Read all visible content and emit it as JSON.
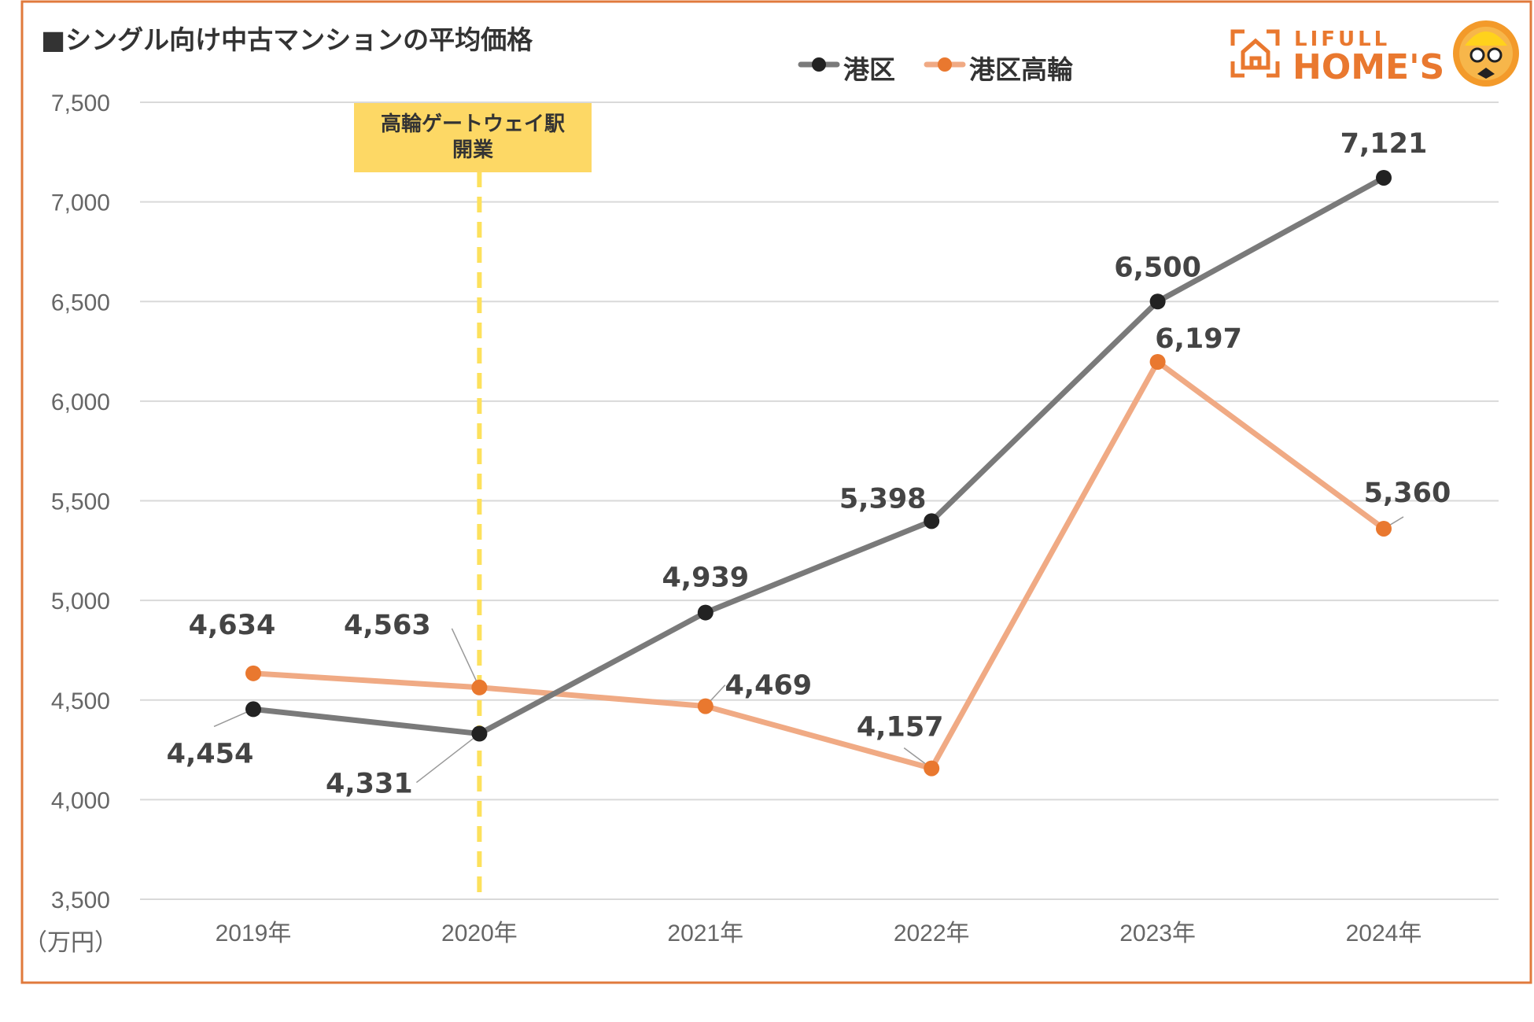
{
  "colors": {
    "frame": "#e07a3c",
    "series_minato": "#7a7a7a",
    "marker_minato": "#222222",
    "series_takanawa": "#f0aa84",
    "marker_takanawa": "#e9782f",
    "annotation_bg": "#fdd865",
    "annotation_line": "#fde15c",
    "grid": "#d9d9d9",
    "brand": "#e9782f"
  },
  "brand": {
    "small": "LIFULL",
    "big": "HOME'S"
  },
  "annotation": {
    "line1": "高輪ゲートウェイ駅",
    "line2": "開業",
    "at_category": "2020年"
  },
  "chart_data": {
    "type": "line",
    "title": "■シングル向け中古マンションの平均価格",
    "ylabel": "（万円）",
    "xlabel": "",
    "ylim": [
      3500,
      7500
    ],
    "yticks": [
      3500,
      4000,
      4500,
      5000,
      5500,
      6000,
      6500,
      7000,
      7500
    ],
    "ytick_labels": [
      "3,500",
      "4,000",
      "4,500",
      "5,000",
      "5,500",
      "6,000",
      "6,500",
      "7,000",
      "7,500"
    ],
    "categories": [
      "2019年",
      "2020年",
      "2021年",
      "2022年",
      "2023年",
      "2024年"
    ],
    "grid": true,
    "legend_position": "top",
    "series": [
      {
        "name": "港区",
        "values": [
          4454,
          4331,
          4939,
          5398,
          6500,
          7121
        ],
        "labels": [
          "4,454",
          "4,331",
          "4,939",
          "5,398",
          "6,500",
          "7,121"
        ]
      },
      {
        "name": "港区高輪",
        "values": [
          4634,
          4563,
          4469,
          4157,
          6197,
          5360
        ],
        "labels": [
          "4,634",
          "4,563",
          "4,469",
          "4,157",
          "6,197",
          "5,360"
        ]
      }
    ]
  }
}
